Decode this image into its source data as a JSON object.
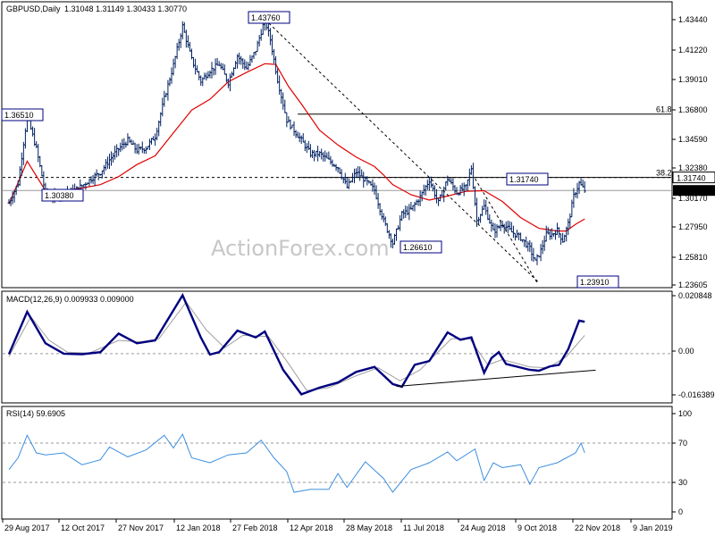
{
  "chart_data": [
    {
      "type": "ohlc",
      "title": "GBPUSD,Daily",
      "ohlc_text": "1.31048 1.31149 1.30433 1.30770",
      "watermark": "ActionForex.com",
      "y_ticks": [
        "1.43440",
        "1.41220",
        "1.39010",
        "1.36800",
        "1.34590",
        "1.32380",
        "1.30170",
        "1.27950",
        "1.25810",
        "1.23605"
      ],
      "ylim": [
        1.23605,
        1.4474
      ],
      "price_tag": "1.30770",
      "price_value": 1.3077,
      "level_tag": "1.31740",
      "level_value": 1.3174,
      "fib_levels": [
        {
          "label": "61.8",
          "value": 1.3645
        },
        {
          "label": "38.2",
          "value": 1.3174
        }
      ],
      "annotations": [
        {
          "text": "1.43760",
          "date_index": 138,
          "value": 1.4376
        },
        {
          "text": "1.36510",
          "date_index": 0,
          "value": 1.3651
        },
        {
          "text": "1.30380",
          "date_index": 21,
          "value": 1.3038
        },
        {
          "text": "1.26610",
          "date_index": 212,
          "value": 1.2661
        },
        {
          "text": "1.31740",
          "date_index": 247,
          "value": 1.3174
        },
        {
          "text": "1.23910",
          "date_index": 290,
          "value": 1.2391
        }
      ],
      "close_points": [
        [
          0,
          1.2985
        ],
        [
          5,
          1.313
        ],
        [
          10,
          1.3632
        ],
        [
          15,
          1.3388
        ],
        [
          20,
          1.3055
        ],
        [
          25,
          1.303
        ],
        [
          30,
          1.3068
        ],
        [
          35,
          1.307
        ],
        [
          40,
          1.3112
        ],
        [
          45,
          1.3165
        ],
        [
          50,
          1.3212
        ],
        [
          55,
          1.3305
        ],
        [
          60,
          1.3385
        ],
        [
          65,
          1.345
        ],
        [
          70,
          1.3375
        ],
        [
          75,
          1.3395
        ],
        [
          80,
          1.348
        ],
        [
          85,
          1.376
        ],
        [
          90,
          1.401
        ],
        [
          95,
          1.43
        ],
        [
          100,
          1.405
        ],
        [
          105,
          1.389
        ],
        [
          110,
          1.397
        ],
        [
          115,
          1.4015
        ],
        [
          120,
          1.388
        ],
        [
          125,
          1.408
        ],
        [
          130,
          1.3985
        ],
        [
          135,
          1.412
        ],
        [
          140,
          1.435
        ],
        [
          143,
          1.42
        ],
        [
          147,
          1.39
        ],
        [
          152,
          1.36
        ],
        [
          160,
          1.345
        ],
        [
          165,
          1.335
        ],
        [
          170,
          1.335
        ],
        [
          175,
          1.33
        ],
        [
          180,
          1.325
        ],
        [
          185,
          1.31
        ],
        [
          190,
          1.3215
        ],
        [
          195,
          1.315
        ],
        [
          200,
          1.308
        ],
        [
          205,
          1.285
        ],
        [
          210,
          1.2685
        ],
        [
          215,
          1.29
        ],
        [
          220,
          1.2935
        ],
        [
          225,
          1.303
        ],
        [
          230,
          1.3155
        ],
        [
          235,
          1.2985
        ],
        [
          240,
          1.3165
        ],
        [
          245,
          1.3062
        ],
        [
          250,
          1.31
        ],
        [
          253,
          1.3245
        ],
        [
          256,
          1.2853
        ],
        [
          260,
          1.2958
        ],
        [
          265,
          1.277
        ],
        [
          270,
          1.283
        ],
        [
          275,
          1.2768
        ],
        [
          280,
          1.2725
        ],
        [
          285,
          1.2645
        ],
        [
          288,
          1.2545
        ],
        [
          291,
          1.263
        ],
        [
          294,
          1.275
        ],
        [
          297,
          1.275
        ],
        [
          300,
          1.278
        ],
        [
          303,
          1.2705
        ],
        [
          306,
          1.2828
        ],
        [
          309,
          1.3035
        ],
        [
          312,
          1.3131
        ],
        [
          315,
          1.3077
        ]
      ],
      "ma_points": [
        [
          0,
          1.2975
        ],
        [
          10,
          1.3295
        ],
        [
          20,
          1.3075
        ],
        [
          30,
          1.3075
        ],
        [
          40,
          1.3095
        ],
        [
          50,
          1.312
        ],
        [
          60,
          1.318
        ],
        [
          70,
          1.327
        ],
        [
          80,
          1.3335
        ],
        [
          90,
          1.3505
        ],
        [
          100,
          1.3675
        ],
        [
          110,
          1.3755
        ],
        [
          120,
          1.3885
        ],
        [
          130,
          1.3955
        ],
        [
          140,
          1.402
        ],
        [
          146,
          1.4015
        ],
        [
          153,
          1.385
        ],
        [
          160,
          1.372
        ],
        [
          170,
          1.3525
        ],
        [
          180,
          1.3415
        ],
        [
          190,
          1.3325
        ],
        [
          200,
          1.3255
        ],
        [
          205,
          1.3192
        ],
        [
          210,
          1.312
        ],
        [
          220,
          1.3045
        ],
        [
          230,
          1.3005
        ],
        [
          240,
          1.3035
        ],
        [
          250,
          1.307
        ],
        [
          260,
          1.3075
        ],
        [
          270,
          1.2995
        ],
        [
          280,
          1.2875
        ],
        [
          290,
          1.2795
        ],
        [
          300,
          1.2775
        ],
        [
          305,
          1.2775
        ],
        [
          310,
          1.2825
        ],
        [
          315,
          1.2865
        ]
      ],
      "ma_color": "#e10000",
      "bar_color": "#002060",
      "trendlines": [
        {
          "from": [
            138,
            1.4376
          ],
          "to": [
            290,
            1.2391
          ]
        },
        {
          "from": [
            255,
            1.3165
          ],
          "to": [
            289,
            1.2391
          ]
        }
      ]
    },
    {
      "type": "line",
      "title": "MACD(12,26,9) 0.009933 0.009000",
      "y_ticks": [
        "0.020848",
        "0.00",
        "-0.016389"
      ],
      "ylim": [
        -0.016389,
        0.020848
      ],
      "series": [
        {
          "color": "#000080",
          "points": [
            [
              0,
              -0.0002
            ],
            [
              10,
              0.0142
            ],
            [
              20,
              0.0035
            ],
            [
              30,
              0.0
            ],
            [
              40,
              -0.0002
            ],
            [
              50,
              0.0005
            ],
            [
              60,
              0.0068
            ],
            [
              70,
              0.0035
            ],
            [
              80,
              0.0045
            ],
            [
              95,
              0.0198
            ],
            [
              105,
              0.0055
            ],
            [
              110,
              -0.0003
            ],
            [
              115,
              0.0005
            ],
            [
              125,
              0.0078
            ],
            [
              135,
              0.0055
            ],
            [
              140,
              0.0075
            ],
            [
              150,
              -0.0055
            ],
            [
              160,
              -0.0138
            ],
            [
              170,
              -0.0115
            ],
            [
              180,
              -0.0098
            ],
            [
              190,
              -0.0062
            ],
            [
              200,
              -0.0045
            ],
            [
              210,
              -0.0103
            ],
            [
              215,
              -0.0112
            ],
            [
              222,
              -0.0038
            ],
            [
              230,
              -0.0025
            ],
            [
              240,
              0.0072
            ],
            [
              247,
              0.0047
            ],
            [
              253,
              0.0055
            ],
            [
              260,
              -0.0065
            ],
            [
              264,
              -0.0015
            ],
            [
              268,
              0.0005
            ],
            [
              272,
              -0.0035
            ],
            [
              285,
              -0.0055
            ],
            [
              290,
              -0.0058
            ],
            [
              296,
              -0.0043
            ],
            [
              301,
              -0.0038
            ],
            [
              306,
              0.0015
            ],
            [
              312,
              0.0112
            ],
            [
              315,
              0.0108
            ]
          ]
        },
        {
          "color": "#a0a0a0",
          "points": [
            [
              0,
              -0.001
            ],
            [
              12,
              0.0125
            ],
            [
              22,
              0.0045
            ],
            [
              32,
              0.0005
            ],
            [
              44,
              0.0002
            ],
            [
              60,
              0.0045
            ],
            [
              72,
              0.004
            ],
            [
              82,
              0.005
            ],
            [
              97,
              0.0175
            ],
            [
              108,
              0.008
            ],
            [
              118,
              0.002
            ],
            [
              128,
              0.0062
            ],
            [
              142,
              0.0058
            ],
            [
              152,
              -0.0025
            ],
            [
              163,
              -0.0125
            ],
            [
              175,
              -0.0115
            ],
            [
              190,
              -0.0075
            ],
            [
              202,
              -0.0048
            ],
            [
              214,
              -0.0092
            ],
            [
              225,
              -0.0055
            ],
            [
              242,
              0.005
            ],
            [
              252,
              0.0052
            ],
            [
              262,
              -0.0038
            ],
            [
              270,
              -0.002
            ],
            [
              285,
              -0.0045
            ],
            [
              295,
              -0.0048
            ],
            [
              305,
              -0.001
            ],
            [
              315,
              0.0062
            ]
          ]
        }
      ],
      "trendlines": [
        {
          "from": [
            212,
            -0.0111
          ],
          "to": [
            321,
            -0.0056
          ]
        }
      ]
    },
    {
      "type": "line",
      "title": "RSI(14) 59.6905",
      "y_ticks": [
        "100",
        "70",
        "30",
        "0"
      ],
      "ylim": [
        0,
        100
      ],
      "levels": [
        70,
        30
      ],
      "series": [
        {
          "color": "#3c8fe0",
          "points": [
            [
              0,
              43
            ],
            [
              5,
              55
            ],
            [
              10,
              78
            ],
            [
              15,
              60
            ],
            [
              20,
              58
            ],
            [
              30,
              60
            ],
            [
              40,
              48
            ],
            [
              50,
              53
            ],
            [
              55,
              66
            ],
            [
              65,
              56
            ],
            [
              75,
              63
            ],
            [
              85,
              78
            ],
            [
              90,
              65
            ],
            [
              95,
              79
            ],
            [
              100,
              55
            ],
            [
              110,
              50
            ],
            [
              120,
              58
            ],
            [
              130,
              60
            ],
            [
              138,
              73
            ],
            [
              145,
              55
            ],
            [
              152,
              41
            ],
            [
              156,
              20
            ],
            [
              165,
              23
            ],
            [
              175,
              23
            ],
            [
              180,
              39
            ],
            [
              185,
              25
            ],
            [
              195,
              51
            ],
            [
              205,
              34
            ],
            [
              210,
              20
            ],
            [
              220,
              43
            ],
            [
              230,
              50
            ],
            [
              240,
              61
            ],
            [
              245,
              52
            ],
            [
              255,
              64
            ],
            [
              260,
              32
            ],
            [
              265,
              50
            ],
            [
              270,
              45
            ],
            [
              280,
              48
            ],
            [
              285,
              28
            ],
            [
              290,
              45
            ],
            [
              300,
              50
            ],
            [
              305,
              55
            ],
            [
              310,
              60
            ],
            [
              313,
              70
            ],
            [
              315,
              60
            ]
          ]
        }
      ]
    }
  ],
  "x_axis": {
    "ticks": [
      {
        "label": "29 Aug 2017",
        "index": 0
      },
      {
        "label": "12 Oct 2017",
        "index": 31
      },
      {
        "label": "27 Nov 2017",
        "index": 63
      },
      {
        "label": "12 Jan 2018",
        "index": 95
      },
      {
        "label": "27 Feb 2018",
        "index": 127
      },
      {
        "label": "12 Apr 2018",
        "index": 158
      },
      {
        "label": "28 May 2018",
        "index": 190
      },
      {
        "label": "11 Jul 2018",
        "index": 221
      },
      {
        "label": "24 Aug 2018",
        "index": 252
      },
      {
        "label": "9 Oct 2018",
        "index": 284
      },
      {
        "label": "22 Nov 2018",
        "index": 314
      },
      {
        "label": "9 Jan 2019",
        "index": 348
      }
    ]
  }
}
